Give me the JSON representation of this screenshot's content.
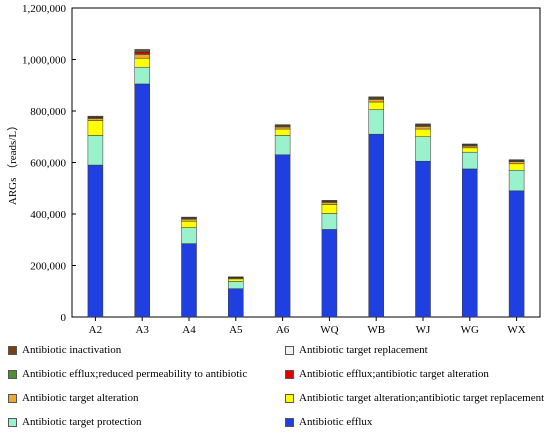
{
  "chart_data": {
    "type": "bar",
    "stacked": true,
    "ylabel": "ARGs （reads/L）",
    "ylim": [
      0,
      1200000
    ],
    "yticks": [
      "0",
      "200,000",
      "400,000",
      "600,000",
      "800,000",
      "1,000,000",
      "1,200,000"
    ],
    "categories": [
      "A2",
      "A3",
      "A4",
      "A5",
      "A6",
      "WQ",
      "WB",
      "WJ",
      "WG",
      "WX"
    ],
    "series": [
      {
        "name": "Antibiotic efflux",
        "color": "#1f3fe0",
        "values": [
          590000,
          905000,
          285000,
          110000,
          630000,
          340000,
          710000,
          605000,
          575000,
          490000
        ]
      },
      {
        "name": "Antibiotic target protection",
        "color": "#99f2cc",
        "values": [
          115000,
          65000,
          62000,
          28000,
          75000,
          62000,
          95000,
          95000,
          65000,
          80000
        ]
      },
      {
        "name": "Antibiotic target alteration;antibiotic target replacement",
        "color": "#ffff00",
        "values": [
          58000,
          35000,
          25000,
          10000,
          25000,
          35000,
          30000,
          30000,
          17000,
          25000
        ]
      },
      {
        "name": "Antibiotic target alteration",
        "color": "#f0a830",
        "values": [
          8000,
          15000,
          8000,
          4000,
          8000,
          8000,
          10000,
          10000,
          7000,
          8000
        ]
      },
      {
        "name": "Antibiotic efflux;antibiotic target alteration",
        "color": "#e00000",
        "values": [
          0,
          8000,
          0,
          0,
          0,
          0,
          0,
          0,
          0,
          0
        ]
      },
      {
        "name": "Antibiotic efflux;reduced permeability to antibiotic",
        "color": "#4f8f2f",
        "values": [
          3000,
          4000,
          3000,
          1000,
          3000,
          3000,
          4000,
          4000,
          3000,
          3000
        ]
      },
      {
        "name": "Antibiotic target replacement",
        "color": "#f2f2f2",
        "values": [
          2000,
          3000,
          2000,
          1000,
          2000,
          2000,
          2000,
          2000,
          2000,
          2000
        ]
      },
      {
        "name": "Antibiotic inactivation",
        "color": "#7a4010",
        "values": [
          4000,
          4000,
          3000,
          2000,
          4000,
          3000,
          4000,
          4000,
          3000,
          3000
        ]
      }
    ],
    "legend": {
      "position": "bottom",
      "items": [
        {
          "name": "Antibiotic inactivation",
          "color": "#7a4010"
        },
        {
          "name": "Antibiotic target replacement",
          "color": "#f2f2f2"
        },
        {
          "name": "Antibiotic efflux;reduced permeability to antibiotic",
          "color": "#4f8f2f"
        },
        {
          "name": "Antibiotic efflux;antibiotic target alteration",
          "color": "#e00000"
        },
        {
          "name": "Antibiotic target alteration",
          "color": "#f0a830"
        },
        {
          "name": "Antibiotic target alteration;antibiotic target replacement",
          "color": "#ffff00"
        },
        {
          "name": "Antibiotic target protection",
          "color": "#99f2cc"
        },
        {
          "name": "Antibiotic efflux",
          "color": "#1f3fe0"
        }
      ]
    },
    "grid": false
  }
}
